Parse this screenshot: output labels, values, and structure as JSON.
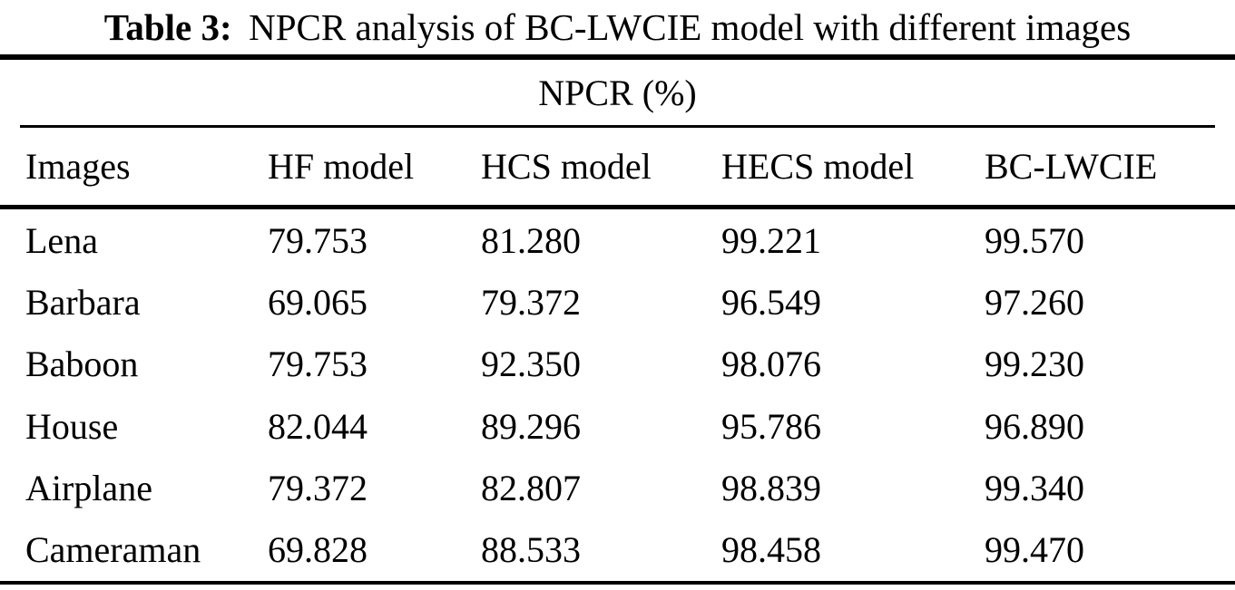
{
  "title": {
    "label": "Table 3:",
    "text": "NPCR analysis of BC-LWCIE model with different images"
  },
  "table": {
    "group_header": "NPCR (%)",
    "columns": [
      "Images",
      "HF model",
      "HCS model",
      "HECS model",
      "BC-LWCIE"
    ],
    "rows": [
      {
        "image": "Lena",
        "hf": "79.753",
        "hcs": "81.280",
        "hecs": "99.221",
        "bc": "99.570"
      },
      {
        "image": "Barbara",
        "hf": "69.065",
        "hcs": "79.372",
        "hecs": "96.549",
        "bc": "97.260"
      },
      {
        "image": "Baboon",
        "hf": "79.753",
        "hcs": "92.350",
        "hecs": "98.076",
        "bc": "99.230"
      },
      {
        "image": "House",
        "hf": "82.044",
        "hcs": "89.296",
        "hecs": "95.786",
        "bc": "96.890"
      },
      {
        "image": "Airplane",
        "hf": "79.372",
        "hcs": "82.807",
        "hecs": "98.839",
        "bc": "99.340"
      },
      {
        "image": "Cameraman",
        "hf": "69.828",
        "hcs": "88.533",
        "hecs": "98.458",
        "bc": "99.470"
      }
    ]
  },
  "chart_data": {
    "type": "table",
    "title": "Table 3: NPCR analysis of BC-LWCIE model with different images",
    "group_header": "NPCR (%)",
    "categories": [
      "Lena",
      "Barbara",
      "Baboon",
      "House",
      "Airplane",
      "Cameraman"
    ],
    "series": [
      {
        "name": "HF model",
        "values": [
          79.753,
          69.065,
          79.753,
          82.044,
          79.372,
          69.828
        ]
      },
      {
        "name": "HCS model",
        "values": [
          81.28,
          79.372,
          92.35,
          89.296,
          82.807,
          88.533
        ]
      },
      {
        "name": "HECS model",
        "values": [
          99.221,
          96.549,
          98.076,
          95.786,
          98.839,
          98.458
        ]
      },
      {
        "name": "BC-LWCIE",
        "values": [
          99.57,
          97.26,
          99.23,
          96.89,
          99.34,
          99.47
        ]
      }
    ]
  },
  "colors": {
    "text": "#000000",
    "background": "#ffffff",
    "rule": "#000000"
  }
}
